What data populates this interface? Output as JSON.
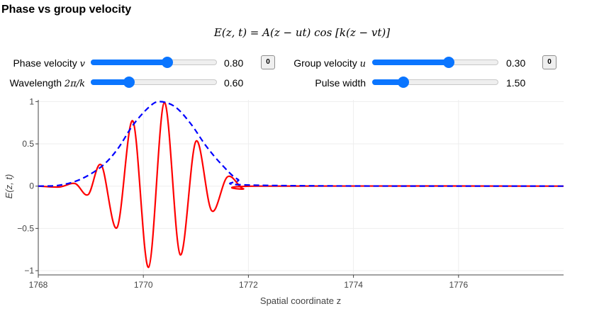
{
  "title": "Phase vs group velocity",
  "equation": "E(z, t) = A(z − ut) cos [k(z − vt)]",
  "controls": {
    "phase_velocity": {
      "label": "Phase velocity ",
      "symbol": "v",
      "value": "0.80",
      "fraction": 0.6,
      "reset_label": "0"
    },
    "group_velocity": {
      "label": "Group velocity ",
      "symbol": "u",
      "value": "0.30",
      "fraction": 0.6,
      "reset_label": "0"
    },
    "wavelength": {
      "label": "Wavelength ",
      "symbol": "2π/k",
      "value": "0.60",
      "fraction": 0.3
    },
    "pulse_width": {
      "label": "Pulse width",
      "value": "1.50",
      "fraction": 0.24
    }
  },
  "accent_color": "#0a75ff",
  "chart_data": {
    "type": "line",
    "xlabel": "Spatial coordinate z",
    "ylabel": "E(z, t)",
    "xlim": [
      1768,
      1778
    ],
    "ylim": [
      -1.05,
      1.02
    ],
    "x_ticks": [
      "1768",
      "1770",
      "1772",
      "1774",
      "1776"
    ],
    "y_ticks": [
      "1",
      "0.5",
      "0",
      "−0.5",
      "−1"
    ],
    "grid": true,
    "series": [
      {
        "style": "solid",
        "color": "#ff0000",
        "points": [
          [
            1768,
            0
          ],
          [
            1768.4,
            -0.01
          ],
          [
            1768.7,
            0.03
          ],
          [
            1768.95,
            -0.1
          ],
          [
            1769.2,
            0.25
          ],
          [
            1769.5,
            -0.49
          ],
          [
            1769.8,
            0.77
          ],
          [
            1770.1,
            -0.96
          ],
          [
            1770.4,
            0.99
          ],
          [
            1770.7,
            -0.81
          ],
          [
            1771.0,
            0.53
          ],
          [
            1771.3,
            -0.29
          ],
          [
            1771.6,
            0.11
          ],
          [
            1771.9,
            -0.03
          ],
          [
            1772.2,
            0
          ],
          [
            1778,
            0
          ]
        ]
      },
      {
        "style": "dashed",
        "color": "#0000ff",
        "points": [
          [
            1768,
            0
          ],
          [
            1768.4,
            0.01
          ],
          [
            1768.8,
            0.08
          ],
          [
            1769.2,
            0.23
          ],
          [
            1769.5,
            0.43
          ],
          [
            1769.8,
            0.72
          ],
          [
            1770.1,
            0.93
          ],
          [
            1770.3,
            1.0
          ],
          [
            1770.6,
            0.94
          ],
          [
            1770.9,
            0.74
          ],
          [
            1771.2,
            0.47
          ],
          [
            1771.5,
            0.25
          ],
          [
            1771.8,
            0.08
          ],
          [
            1772.2,
            0.01
          ],
          [
            1778,
            0
          ]
        ]
      }
    ]
  }
}
